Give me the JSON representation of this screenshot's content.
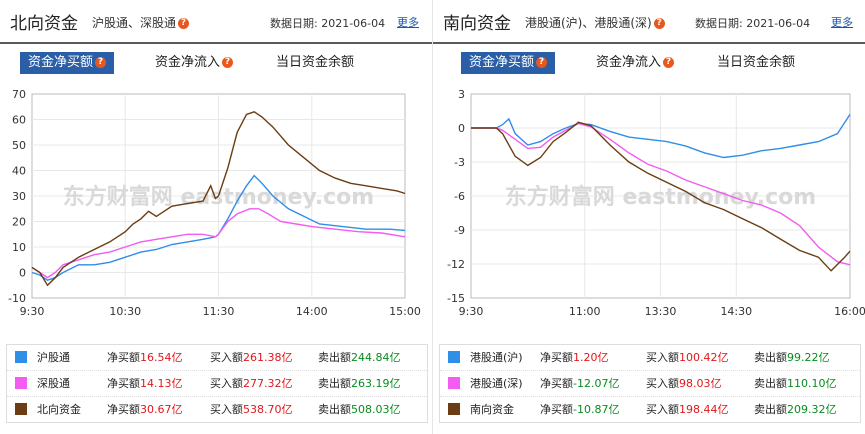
{
  "north": {
    "title": "北向资金",
    "subtitle": "沪股通、深股通",
    "date_label": "数据日期:",
    "date": "2021-06-04",
    "more": "更多",
    "tabs": [
      "资金净买额",
      "资金净流入",
      "当日资金余额"
    ],
    "legend": [
      {
        "name": "沪股通",
        "net_label": "净买额",
        "net": "16.54亿",
        "buy_label": "买入额",
        "buy": "261.38亿",
        "sell_label": "卖出额",
        "sell": "244.84亿",
        "color": "#2f8ee8"
      },
      {
        "name": "深股通",
        "net_label": "净买额",
        "net": "14.13亿",
        "buy_label": "买入额",
        "buy": "277.32亿",
        "sell_label": "卖出额",
        "sell": "263.19亿",
        "color": "#f25cf0"
      },
      {
        "name": "北向资金",
        "net_label": "净买额",
        "net": "30.67亿",
        "buy_label": "买入额",
        "buy": "538.70亿",
        "sell_label": "卖出额",
        "sell": "508.03亿",
        "color": "#6b3d12"
      }
    ]
  },
  "south": {
    "title": "南向资金",
    "subtitle": "港股通(沪)、港股通(深)",
    "date_label": "数据日期:",
    "date": "2021-06-04",
    "more": "更多",
    "tabs": [
      "资金净买额",
      "资金净流入",
      "当日资金余额"
    ],
    "legend": [
      {
        "name": "港股通(沪)",
        "net_label": "净买额",
        "net": "1.20亿",
        "buy_label": "买入额",
        "buy": "100.42亿",
        "sell_label": "卖出额",
        "sell": "99.22亿",
        "color": "#2f8ee8"
      },
      {
        "name": "港股通(深)",
        "net_label": "净买额",
        "net": "-12.07亿",
        "buy_label": "买入额",
        "buy": "98.03亿",
        "sell_label": "卖出额",
        "sell": "110.10亿",
        "color": "#f25cf0"
      },
      {
        "name": "南向资金",
        "net_label": "净买额",
        "net": "-10.87亿",
        "buy_label": "买入额",
        "buy": "198.44亿",
        "sell_label": "卖出额",
        "sell": "209.32亿",
        "color": "#6b3d12"
      }
    ]
  },
  "chart_data": [
    {
      "type": "line",
      "ylim": [
        -10,
        70
      ],
      "yticks": [
        70,
        60,
        50,
        40,
        30,
        20,
        10,
        0,
        -10
      ],
      "xticks": [
        "9:30",
        "10:30",
        "11:30",
        "14:00",
        "15:00"
      ],
      "xtick_pos": [
        0,
        60,
        120,
        180,
        240
      ],
      "xmax": 240,
      "watermark": "东方财富网 eastmoney.com",
      "series": [
        {
          "name": "沪股通",
          "color": "#2f8ee8",
          "points": [
            [
              0,
              0
            ],
            [
              5,
              -1
            ],
            [
              10,
              -3
            ],
            [
              15,
              -2
            ],
            [
              20,
              0
            ],
            [
              30,
              3
            ],
            [
              40,
              3
            ],
            [
              50,
              4
            ],
            [
              60,
              6
            ],
            [
              70,
              8
            ],
            [
              80,
              9
            ],
            [
              90,
              11
            ],
            [
              100,
              12
            ],
            [
              110,
              13
            ],
            [
              118,
              14
            ],
            [
              120,
              15
            ],
            [
              126,
              21
            ],
            [
              132,
              28
            ],
            [
              138,
              34
            ],
            [
              143,
              38
            ],
            [
              148,
              35
            ],
            [
              155,
              30
            ],
            [
              165,
              25
            ],
            [
              175,
              22
            ],
            [
              185,
              19
            ],
            [
              200,
              18
            ],
            [
              215,
              17
            ],
            [
              230,
              17
            ],
            [
              240,
              16.5
            ]
          ]
        },
        {
          "name": "深股通",
          "color": "#f25cf0",
          "points": [
            [
              0,
              2
            ],
            [
              5,
              0
            ],
            [
              10,
              -2
            ],
            [
              15,
              0
            ],
            [
              20,
              3
            ],
            [
              30,
              5
            ],
            [
              40,
              7
            ],
            [
              50,
              8
            ],
            [
              60,
              10
            ],
            [
              70,
              12
            ],
            [
              80,
              13
            ],
            [
              90,
              14
            ],
            [
              100,
              15
            ],
            [
              110,
              15
            ],
            [
              118,
              14
            ],
            [
              120,
              15
            ],
            [
              126,
              20
            ],
            [
              132,
              23
            ],
            [
              140,
              25
            ],
            [
              146,
              25
            ],
            [
              152,
              23
            ],
            [
              160,
              20
            ],
            [
              170,
              19
            ],
            [
              180,
              18
            ],
            [
              195,
              17
            ],
            [
              210,
              16
            ],
            [
              225,
              15.5
            ],
            [
              240,
              14
            ]
          ]
        },
        {
          "name": "北向资金",
          "color": "#6b3d12",
          "points": [
            [
              0,
              2
            ],
            [
              5,
              0
            ],
            [
              10,
              -5
            ],
            [
              15,
              -2
            ],
            [
              20,
              2
            ],
            [
              30,
              6
            ],
            [
              40,
              9
            ],
            [
              50,
              12
            ],
            [
              60,
              16
            ],
            [
              65,
              19
            ],
            [
              70,
              21
            ],
            [
              75,
              24
            ],
            [
              80,
              22
            ],
            [
              90,
              26
            ],
            [
              100,
              27
            ],
            [
              110,
              28
            ],
            [
              115,
              34
            ],
            [
              118,
              29
            ],
            [
              120,
              30
            ],
            [
              126,
              41
            ],
            [
              132,
              55
            ],
            [
              138,
              62
            ],
            [
              143,
              63
            ],
            [
              148,
              61
            ],
            [
              155,
              57
            ],
            [
              165,
              50
            ],
            [
              175,
              45
            ],
            [
              185,
              40
            ],
            [
              195,
              37
            ],
            [
              205,
              35
            ],
            [
              215,
              34
            ],
            [
              225,
              33
            ],
            [
              235,
              32
            ],
            [
              240,
              31
            ]
          ]
        }
      ]
    },
    {
      "type": "line",
      "ylim": [
        -15,
        3
      ],
      "yticks": [
        3,
        0,
        -3,
        -6,
        -9,
        -12,
        -15
      ],
      "xticks": [
        "9:30",
        "11:00",
        "13:30",
        "14:30",
        "16:00"
      ],
      "xtick_pos": [
        0,
        90,
        150,
        210,
        300
      ],
      "xmax": 300,
      "watermark": "东方财富网 eastmoney.com",
      "series": [
        {
          "name": "港股通(沪)",
          "color": "#2f8ee8",
          "points": [
            [
              0,
              0
            ],
            [
              20,
              0
            ],
            [
              25,
              0.3
            ],
            [
              30,
              0.8
            ],
            [
              35,
              -0.5
            ],
            [
              45,
              -1.5
            ],
            [
              55,
              -1.2
            ],
            [
              65,
              -0.5
            ],
            [
              75,
              0
            ],
            [
              85,
              0.4
            ],
            [
              95,
              0.3
            ],
            [
              110,
              -0.3
            ],
            [
              125,
              -0.8
            ],
            [
              140,
              -1.0
            ],
            [
              155,
              -1.2
            ],
            [
              170,
              -1.6
            ],
            [
              185,
              -2.2
            ],
            [
              200,
              -2.6
            ],
            [
              215,
              -2.4
            ],
            [
              230,
              -2.0
            ],
            [
              245,
              -1.8
            ],
            [
              260,
              -1.5
            ],
            [
              275,
              -1.2
            ],
            [
              290,
              -0.5
            ],
            [
              300,
              1.2
            ]
          ]
        },
        {
          "name": "港股通(深)",
          "color": "#f25cf0",
          "points": [
            [
              0,
              0
            ],
            [
              20,
              0
            ],
            [
              25,
              -0.2
            ],
            [
              35,
              -1.0
            ],
            [
              45,
              -1.8
            ],
            [
              55,
              -1.7
            ],
            [
              65,
              -0.8
            ],
            [
              75,
              -0.2
            ],
            [
              85,
              0.4
            ],
            [
              95,
              0.1
            ],
            [
              110,
              -1.0
            ],
            [
              125,
              -2.2
            ],
            [
              140,
              -3.2
            ],
            [
              155,
              -3.8
            ],
            [
              170,
              -4.6
            ],
            [
              185,
              -5.2
            ],
            [
              200,
              -5.8
            ],
            [
              215,
              -6.4
            ],
            [
              230,
              -6.8
            ],
            [
              245,
              -7.5
            ],
            [
              260,
              -8.6
            ],
            [
              275,
              -10.5
            ],
            [
              290,
              -11.8
            ],
            [
              300,
              -12.07
            ]
          ]
        },
        {
          "name": "南向资金",
          "color": "#6b3d12",
          "points": [
            [
              0,
              0
            ],
            [
              20,
              0
            ],
            [
              25,
              -0.5
            ],
            [
              35,
              -2.5
            ],
            [
              45,
              -3.3
            ],
            [
              55,
              -2.6
            ],
            [
              65,
              -1.2
            ],
            [
              75,
              -0.4
            ],
            [
              85,
              0.5
            ],
            [
              95,
              0.2
            ],
            [
              110,
              -1.5
            ],
            [
              125,
              -3.0
            ],
            [
              140,
              -4.0
            ],
            [
              155,
              -4.8
            ],
            [
              170,
              -5.6
            ],
            [
              185,
              -6.6
            ],
            [
              200,
              -7.2
            ],
            [
              215,
              -8.0
            ],
            [
              230,
              -8.8
            ],
            [
              245,
              -9.8
            ],
            [
              260,
              -10.8
            ],
            [
              275,
              -11.4
            ],
            [
              285,
              -12.6
            ],
            [
              295,
              -11.5
            ],
            [
              300,
              -10.87
            ]
          ]
        }
      ]
    }
  ]
}
